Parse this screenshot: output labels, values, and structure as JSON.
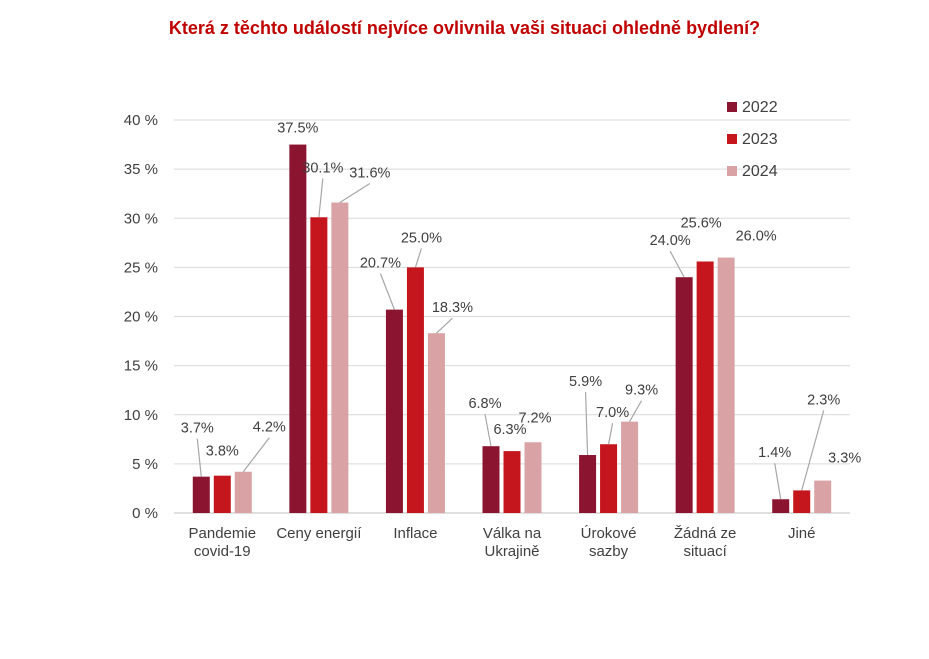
{
  "chart_data": {
    "type": "bar",
    "title": "Která z těchto událostí nejvíce ovlivnila vaši situaci ohledně bydlení?",
    "categories": [
      [
        "Pandemie",
        "covid-19"
      ],
      [
        "Ceny energií"
      ],
      [
        "Inflace"
      ],
      [
        "Válka na",
        "Ukrajině"
      ],
      [
        "Úrokové",
        "sazby"
      ],
      [
        "Žádná ze",
        "situací"
      ],
      [
        "Jiné"
      ]
    ],
    "series": [
      {
        "name": "2022",
        "color": "#8b1430",
        "values": [
          3.7,
          37.5,
          20.7,
          6.8,
          5.9,
          24.0,
          1.4
        ],
        "labels": [
          "3.7%",
          "37.5%",
          "20.7%",
          "6.8%",
          "5.9%",
          "24.0%",
          "1.4%"
        ]
      },
      {
        "name": "2023",
        "color": "#c4161c",
        "values": [
          3.8,
          30.1,
          25.0,
          6.3,
          7.0,
          25.6,
          2.3
        ],
        "labels": [
          "3.8%",
          "30.1%",
          "25.0%",
          "6.3%",
          "7.0%",
          "25.6%",
          "2.3%"
        ]
      },
      {
        "name": "2024",
        "color": "#d9a3a6",
        "values": [
          4.2,
          31.6,
          18.3,
          7.2,
          9.3,
          26.0,
          3.3
        ],
        "labels": [
          "4.2%",
          "31.6%",
          "18.3%",
          "7.2%",
          "9.3%",
          "26.0%",
          "3.3%"
        ]
      }
    ],
    "ylim": [
      0,
      40
    ],
    "yticks": [
      0,
      5,
      10,
      15,
      20,
      25,
      30,
      35,
      40
    ],
    "ytick_labels": [
      "0 %",
      "5 %",
      "10 %",
      "15 %",
      "20 %",
      "25 %",
      "30 %",
      "35 %",
      "40 %"
    ],
    "grid": true,
    "legend_position": "top-right"
  }
}
